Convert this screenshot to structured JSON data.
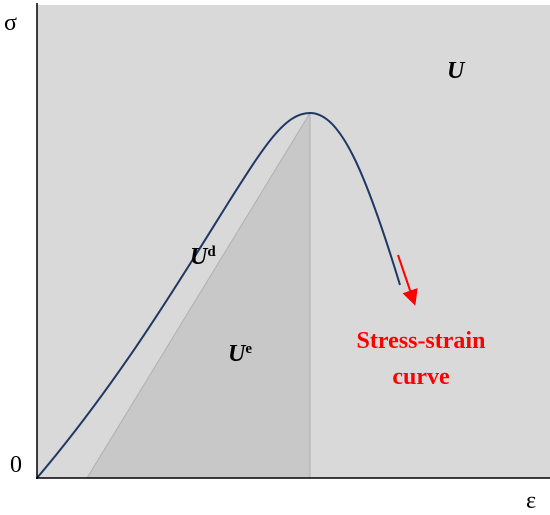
{
  "axes": {
    "y_label": "σ",
    "x_label": "ε",
    "origin": "0"
  },
  "regions": {
    "total": {
      "symbol": "U"
    },
    "dissipated": {
      "symbol": "U",
      "superscript": "d"
    },
    "elastic": {
      "symbol": "U",
      "superscript": "e"
    }
  },
  "annotation": {
    "lines": [
      "Stress-strain",
      "curve"
    ]
  }
}
